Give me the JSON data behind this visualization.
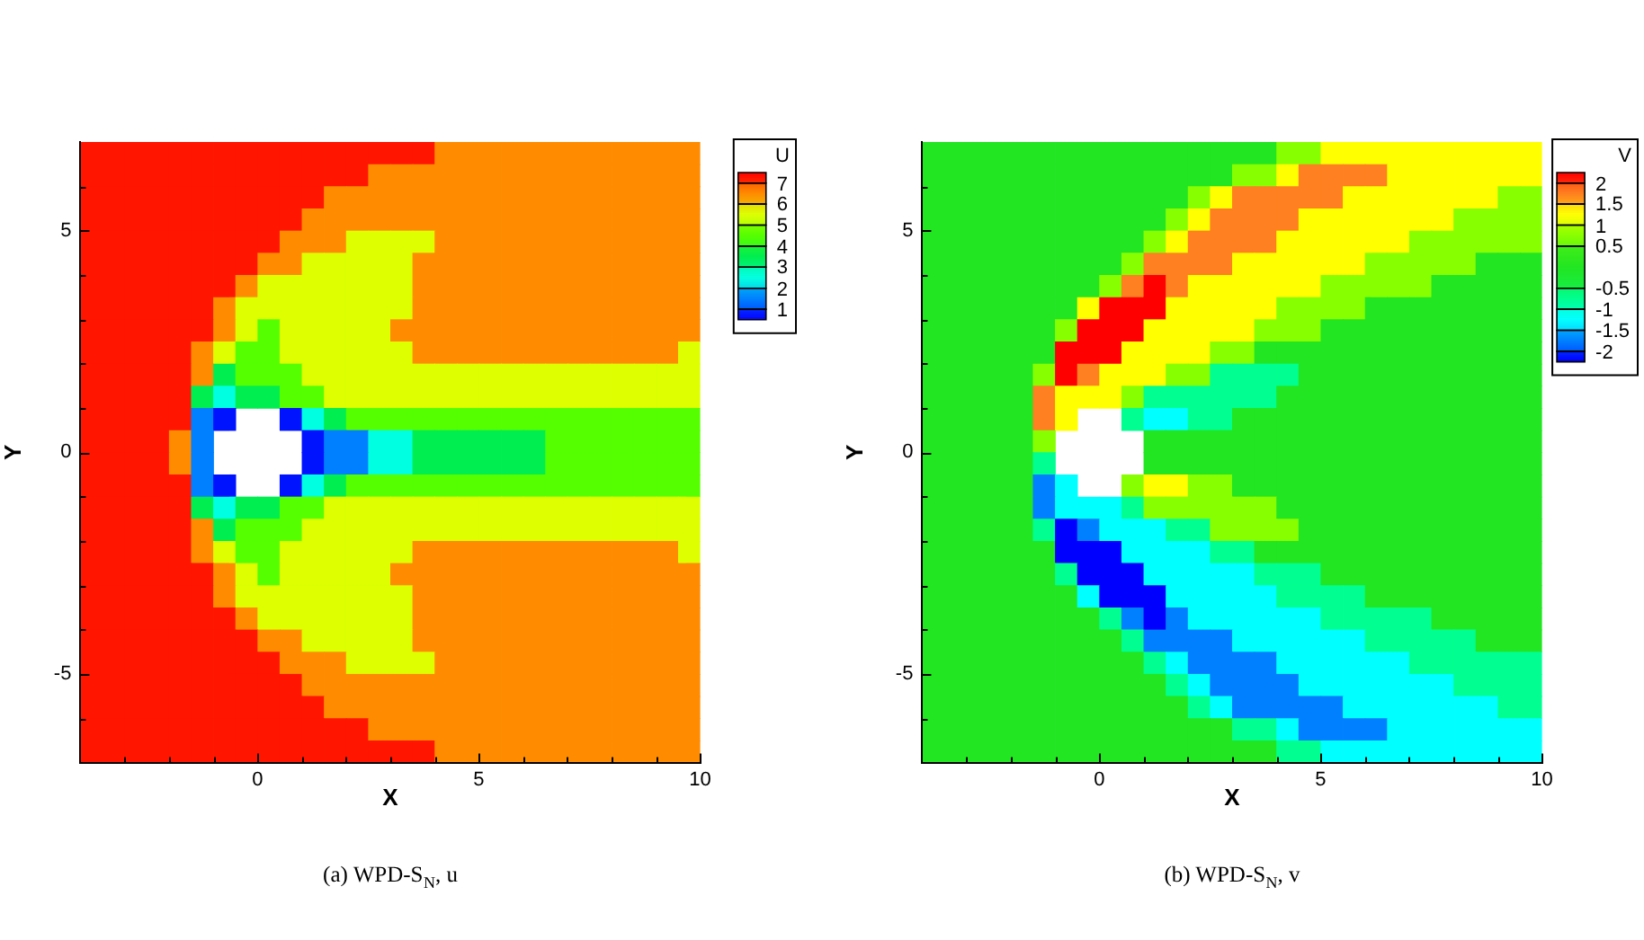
{
  "chart_data": [
    {
      "type": "heatmap",
      "title": "(a) WPD-S$_{N}$, u",
      "xlabel": "X",
      "ylabel": "Y",
      "clabel": "U",
      "xlim": [
        -4,
        10
      ],
      "ylim": [
        -7,
        7
      ],
      "xticks": [
        {
          "value": -3,
          "label": null
        },
        {
          "value": -2,
          "label": null
        },
        {
          "value": -1,
          "label": null
        },
        0,
        {
          "value": 1,
          "label": null
        },
        {
          "value": 2,
          "label": null
        },
        {
          "value": 3,
          "label": null
        },
        {
          "value": 4,
          "label": null
        },
        5,
        {
          "value": 6,
          "label": null
        },
        {
          "value": 7,
          "label": null
        },
        {
          "value": 8,
          "label": null
        },
        {
          "value": 9,
          "label": null
        },
        10
      ],
      "yticks": [
        {
          "value": -6,
          "label": null
        },
        -5,
        {
          "value": -4,
          "label": null
        },
        {
          "value": -3,
          "label": null
        },
        {
          "value": -2,
          "label": null
        },
        {
          "value": -1,
          "label": null
        },
        0,
        {
          "value": 1,
          "label": null
        },
        {
          "value": 2,
          "label": null
        },
        {
          "value": 3,
          "label": null
        },
        {
          "value": 4,
          "label": null
        },
        5,
        {
          "value": 6,
          "label": null
        }
      ],
      "clim": [
        0.5,
        7.5
      ],
      "cticks": [
        1,
        2,
        3,
        4,
        5,
        6,
        7
      ],
      "colors": [
        "#0000ff",
        "#0080ff",
        "#00ffe0",
        "#00ee50",
        "#55ff00",
        "#ddff00",
        "#ff8c00",
        "#ff0000"
      ],
      "cells": [
        [
          7.25,
          7.25,
          7.25,
          7.25,
          7.25,
          7.25,
          7.25,
          7.25,
          7.25,
          7.25,
          7.25,
          7.25,
          7.25,
          7.25,
          7.25,
          7.25,
          6.5,
          6.5,
          6.5,
          6.5,
          6.5,
          6.5,
          6.5,
          6.5,
          6.5,
          6.5,
          6.5,
          6.5
        ],
        [
          7.25,
          7.25,
          7.25,
          7.25,
          7.25,
          7.25,
          7.25,
          7.25,
          7.25,
          7.25,
          7.25,
          7.25,
          7.25,
          6.5,
          6.5,
          6.5,
          6.5,
          6.5,
          6.5,
          6.5,
          6.5,
          6.5,
          6.5,
          6.5,
          6.5,
          6.5,
          6.5,
          6.5
        ],
        [
          7.25,
          7.25,
          7.25,
          7.25,
          7.25,
          7.25,
          7.25,
          7.25,
          7.25,
          7.25,
          7.25,
          6.5,
          6.5,
          6.5,
          6.5,
          6.5,
          6.5,
          6.5,
          6.5,
          6.5,
          6.5,
          6.5,
          6.5,
          6.5,
          6.5,
          6.5,
          6.5,
          6.5
        ],
        [
          7.25,
          7.25,
          7.25,
          7.25,
          7.25,
          7.25,
          7.25,
          7.25,
          7.25,
          7.25,
          6.5,
          6.5,
          6.5,
          6.5,
          6.5,
          6.5,
          6.5,
          6.5,
          6.5,
          6.5,
          6.5,
          6.5,
          6.5,
          6.5,
          6.5,
          6.5,
          6.5,
          6.5
        ],
        [
          7.25,
          7.25,
          7.25,
          7.25,
          7.25,
          7.25,
          7.25,
          7.25,
          7.25,
          6.5,
          6.5,
          6.5,
          5.5,
          5.5,
          5.5,
          5.5,
          6.5,
          6.5,
          6.5,
          6.5,
          6.5,
          6.5,
          6.5,
          6.5,
          6.5,
          6.5,
          6.5,
          6.5
        ],
        [
          7.25,
          7.25,
          7.25,
          7.25,
          7.25,
          7.25,
          7.25,
          7.25,
          6.5,
          6.5,
          5.5,
          5.5,
          5.5,
          5.5,
          5.5,
          6.5,
          6.5,
          6.5,
          6.5,
          6.5,
          6.5,
          6.5,
          6.5,
          6.5,
          6.5,
          6.5,
          6.5,
          6.5
        ],
        [
          7.25,
          7.25,
          7.25,
          7.25,
          7.25,
          7.25,
          7.25,
          6.5,
          5.5,
          5.5,
          5.5,
          5.5,
          5.5,
          5.5,
          5.5,
          6.5,
          6.5,
          6.5,
          6.5,
          6.5,
          6.5,
          6.5,
          6.5,
          6.5,
          6.5,
          6.5,
          6.5,
          6.5
        ],
        [
          7.25,
          7.25,
          7.25,
          7.25,
          7.25,
          7.25,
          6.5,
          5.5,
          5.5,
          5.5,
          5.5,
          5.5,
          5.5,
          5.5,
          5.5,
          6.5,
          6.5,
          6.5,
          6.5,
          6.5,
          6.5,
          6.5,
          6.5,
          6.5,
          6.5,
          6.5,
          6.5,
          6.5
        ],
        [
          7.25,
          7.25,
          7.25,
          7.25,
          7.25,
          7.25,
          6.5,
          5.5,
          4.5,
          5.5,
          5.5,
          5.5,
          5.5,
          5.5,
          6.5,
          6.5,
          6.5,
          6.5,
          6.5,
          6.5,
          6.5,
          6.5,
          6.5,
          6.5,
          6.5,
          6.5,
          6.5,
          6.5
        ],
        [
          7.25,
          7.25,
          7.25,
          7.25,
          7.25,
          6.5,
          5.5,
          4.5,
          4.5,
          5.5,
          5.5,
          5.5,
          5.5,
          5.5,
          5.5,
          6.5,
          6.5,
          6.5,
          6.5,
          6.5,
          6.5,
          6.5,
          6.5,
          6.5,
          6.5,
          6.5,
          6.5,
          5.5
        ],
        [
          7.25,
          7.25,
          7.25,
          7.25,
          7.25,
          6.5,
          3.5,
          4.5,
          4.5,
          4.5,
          5.5,
          5.5,
          5.5,
          5.5,
          5.5,
          5.5,
          5.5,
          5.5,
          5.5,
          5.5,
          5.5,
          5.5,
          5.5,
          5.5,
          5.5,
          5.5,
          5.5,
          5.5
        ],
        [
          7.25,
          7.25,
          7.25,
          7.25,
          7.25,
          3.5,
          2.5,
          3.5,
          3.5,
          4.5,
          4.5,
          5.5,
          5.5,
          5.5,
          5.5,
          5.5,
          5.5,
          5.5,
          5.5,
          5.5,
          5.5,
          5.5,
          5.5,
          5.5,
          5.5,
          5.5,
          5.5,
          5.5
        ],
        [
          7.25,
          7.25,
          7.25,
          7.25,
          7.25,
          1.5,
          0.75,
          null,
          null,
          0.75,
          2.5,
          3.5,
          4.5,
          4.5,
          4.5,
          4.5,
          4.5,
          4.5,
          4.5,
          4.5,
          4.5,
          4.5,
          4.5,
          4.5,
          4.5,
          4.5,
          4.5,
          4.5
        ],
        [
          7.25,
          7.25,
          7.25,
          7.25,
          6.5,
          1.5,
          null,
          null,
          null,
          null,
          0.75,
          1.5,
          1.5,
          2.5,
          2.5,
          3.5,
          3.5,
          3.5,
          3.5,
          3.5,
          3.5,
          4.5,
          4.5,
          4.5,
          4.5,
          4.5,
          4.5,
          4.5
        ],
        [
          7.25,
          7.25,
          7.25,
          7.25,
          6.5,
          1.5,
          null,
          null,
          null,
          null,
          0.75,
          1.5,
          1.5,
          2.5,
          2.5,
          3.5,
          3.5,
          3.5,
          3.5,
          3.5,
          3.5,
          4.5,
          4.5,
          4.5,
          4.5,
          4.5,
          4.5,
          4.5
        ],
        [
          7.25,
          7.25,
          7.25,
          7.25,
          7.25,
          1.5,
          0.75,
          null,
          null,
          0.75,
          2.5,
          3.5,
          4.5,
          4.5,
          4.5,
          4.5,
          4.5,
          4.5,
          4.5,
          4.5,
          4.5,
          4.5,
          4.5,
          4.5,
          4.5,
          4.5,
          4.5,
          4.5
        ],
        [
          7.25,
          7.25,
          7.25,
          7.25,
          7.25,
          3.5,
          2.5,
          3.5,
          3.5,
          4.5,
          4.5,
          5.5,
          5.5,
          5.5,
          5.5,
          5.5,
          5.5,
          5.5,
          5.5,
          5.5,
          5.5,
          5.5,
          5.5,
          5.5,
          5.5,
          5.5,
          5.5,
          5.5
        ],
        [
          7.25,
          7.25,
          7.25,
          7.25,
          7.25,
          6.5,
          3.5,
          4.5,
          4.5,
          4.5,
          5.5,
          5.5,
          5.5,
          5.5,
          5.5,
          5.5,
          5.5,
          5.5,
          5.5,
          5.5,
          5.5,
          5.5,
          5.5,
          5.5,
          5.5,
          5.5,
          5.5,
          5.5
        ],
        [
          7.25,
          7.25,
          7.25,
          7.25,
          7.25,
          6.5,
          5.5,
          4.5,
          4.5,
          5.5,
          5.5,
          5.5,
          5.5,
          5.5,
          5.5,
          6.5,
          6.5,
          6.5,
          6.5,
          6.5,
          6.5,
          6.5,
          6.5,
          6.5,
          6.5,
          6.5,
          6.5,
          5.5
        ],
        [
          7.25,
          7.25,
          7.25,
          7.25,
          7.25,
          7.25,
          6.5,
          5.5,
          4.5,
          5.5,
          5.5,
          5.5,
          5.5,
          5.5,
          6.5,
          6.5,
          6.5,
          6.5,
          6.5,
          6.5,
          6.5,
          6.5,
          6.5,
          6.5,
          6.5,
          6.5,
          6.5,
          6.5
        ],
        [
          7.25,
          7.25,
          7.25,
          7.25,
          7.25,
          7.25,
          6.5,
          5.5,
          5.5,
          5.5,
          5.5,
          5.5,
          5.5,
          5.5,
          5.5,
          6.5,
          6.5,
          6.5,
          6.5,
          6.5,
          6.5,
          6.5,
          6.5,
          6.5,
          6.5,
          6.5,
          6.5,
          6.5
        ],
        [
          7.25,
          7.25,
          7.25,
          7.25,
          7.25,
          7.25,
          7.25,
          6.5,
          5.5,
          5.5,
          5.5,
          5.5,
          5.5,
          5.5,
          5.5,
          6.5,
          6.5,
          6.5,
          6.5,
          6.5,
          6.5,
          6.5,
          6.5,
          6.5,
          6.5,
          6.5,
          6.5,
          6.5
        ],
        [
          7.25,
          7.25,
          7.25,
          7.25,
          7.25,
          7.25,
          7.25,
          7.25,
          6.5,
          6.5,
          5.5,
          5.5,
          5.5,
          5.5,
          5.5,
          6.5,
          6.5,
          6.5,
          6.5,
          6.5,
          6.5,
          6.5,
          6.5,
          6.5,
          6.5,
          6.5,
          6.5,
          6.5
        ],
        [
          7.25,
          7.25,
          7.25,
          7.25,
          7.25,
          7.25,
          7.25,
          7.25,
          7.25,
          6.5,
          6.5,
          6.5,
          5.5,
          5.5,
          5.5,
          5.5,
          6.5,
          6.5,
          6.5,
          6.5,
          6.5,
          6.5,
          6.5,
          6.5,
          6.5,
          6.5,
          6.5,
          6.5
        ],
        [
          7.25,
          7.25,
          7.25,
          7.25,
          7.25,
          7.25,
          7.25,
          7.25,
          7.25,
          7.25,
          6.5,
          6.5,
          6.5,
          6.5,
          6.5,
          6.5,
          6.5,
          6.5,
          6.5,
          6.5,
          6.5,
          6.5,
          6.5,
          6.5,
          6.5,
          6.5,
          6.5,
          6.5
        ],
        [
          7.25,
          7.25,
          7.25,
          7.25,
          7.25,
          7.25,
          7.25,
          7.25,
          7.25,
          7.25,
          7.25,
          6.5,
          6.5,
          6.5,
          6.5,
          6.5,
          6.5,
          6.5,
          6.5,
          6.5,
          6.5,
          6.5,
          6.5,
          6.5,
          6.5,
          6.5,
          6.5,
          6.5
        ],
        [
          7.25,
          7.25,
          7.25,
          7.25,
          7.25,
          7.25,
          7.25,
          7.25,
          7.25,
          7.25,
          7.25,
          7.25,
          7.25,
          6.5,
          6.5,
          6.5,
          6.5,
          6.5,
          6.5,
          6.5,
          6.5,
          6.5,
          6.5,
          6.5,
          6.5,
          6.5,
          6.5,
          6.5
        ],
        [
          7.25,
          7.25,
          7.25,
          7.25,
          7.25,
          7.25,
          7.25,
          7.25,
          7.25,
          7.25,
          7.25,
          7.25,
          7.25,
          7.25,
          7.25,
          7.25,
          6.5,
          6.5,
          6.5,
          6.5,
          6.5,
          6.5,
          6.5,
          6.5,
          6.5,
          6.5,
          6.5,
          6.5
        ]
      ]
    },
    {
      "type": "heatmap",
      "title": "(b) WPD-S$_{N}$, v",
      "xlabel": "X",
      "ylabel": "Y",
      "clabel": "V",
      "xlim": [
        -4,
        10
      ],
      "ylim": [
        -7,
        7
      ],
      "xticks": [
        {
          "value": -3,
          "label": null
        },
        {
          "value": -2,
          "label": null
        },
        {
          "value": -1,
          "label": null
        },
        0,
        {
          "value": 1,
          "label": null
        },
        {
          "value": 2,
          "label": null
        },
        {
          "value": 3,
          "label": null
        },
        {
          "value": 4,
          "label": null
        },
        5,
        {
          "value": 6,
          "label": null
        },
        {
          "value": 7,
          "label": null
        },
        {
          "value": 8,
          "label": null
        },
        {
          "value": 9,
          "label": null
        },
        10
      ],
      "yticks": [
        {
          "value": -6,
          "label": null
        },
        -5,
        {
          "value": -4,
          "label": null
        },
        {
          "value": -3,
          "label": null
        },
        {
          "value": -2,
          "label": null
        },
        {
          "value": -1,
          "label": null
        },
        0,
        {
          "value": 1,
          "label": null
        },
        {
          "value": 2,
          "label": null
        },
        {
          "value": 3,
          "label": null
        },
        {
          "value": 4,
          "label": null
        },
        5,
        {
          "value": 6,
          "label": null
        }
      ],
      "clim": [
        -2.25,
        2.25
      ],
      "cticks": [
        -2,
        -1.5,
        -1,
        -0.5,
        0.5,
        1,
        1.5,
        2
      ],
      "colors": [
        "#0000ff",
        "#0080ff",
        "#00ffff",
        "#00ff90",
        "#22e622",
        "#88ff00",
        "#ffff00",
        "#ff8020",
        "#ff0000"
      ],
      "cells": [
        [
          0,
          0,
          0,
          0,
          0,
          0,
          0,
          0,
          0,
          0,
          0,
          0,
          0,
          0,
          0,
          0,
          0.75,
          0.75,
          1.25,
          1.25,
          1.25,
          1.25,
          1.25,
          1.25,
          1.25,
          1.25,
          1.25,
          1.25
        ],
        [
          0,
          0,
          0,
          0,
          0,
          0,
          0,
          0,
          0,
          0,
          0,
          0,
          0,
          0,
          0.75,
          0.75,
          1.25,
          1.75,
          1.75,
          1.75,
          1.75,
          1.25,
          1.25,
          1.25,
          1.25,
          1.25,
          1.25,
          1.25
        ],
        [
          0,
          0,
          0,
          0,
          0,
          0,
          0,
          0,
          0,
          0,
          0,
          0,
          0.75,
          1.25,
          1.75,
          1.75,
          1.75,
          1.75,
          1.75,
          1.25,
          1.25,
          1.25,
          1.25,
          1.25,
          1.25,
          1.25,
          0.75,
          0.75
        ],
        [
          0,
          0,
          0,
          0,
          0,
          0,
          0,
          0,
          0,
          0,
          0,
          0.75,
          1.25,
          1.75,
          1.75,
          1.75,
          1.75,
          1.25,
          1.25,
          1.25,
          1.25,
          1.25,
          1.25,
          1.25,
          0.75,
          0.75,
          0.75,
          0.75
        ],
        [
          0,
          0,
          0,
          0,
          0,
          0,
          0,
          0,
          0,
          0,
          0.75,
          1.25,
          1.75,
          1.75,
          1.75,
          1.75,
          1.25,
          1.25,
          1.25,
          1.25,
          1.25,
          1.25,
          0.75,
          0.75,
          0.75,
          0.75,
          0.75,
          0.75
        ],
        [
          0,
          0,
          0,
          0,
          0,
          0,
          0,
          0,
          0,
          0.75,
          1.75,
          1.75,
          1.75,
          1.75,
          1.25,
          1.25,
          1.25,
          1.25,
          1.25,
          1.25,
          0.75,
          0.75,
          0.75,
          0.75,
          0.75,
          0,
          0,
          0
        ],
        [
          0,
          0,
          0,
          0,
          0,
          0,
          0,
          0,
          0.75,
          1.75,
          2.25,
          1.75,
          1.25,
          1.25,
          1.25,
          1.25,
          1.25,
          1.25,
          0.75,
          0.75,
          0.75,
          0.75,
          0.75,
          0,
          0,
          0,
          0,
          0
        ],
        [
          0,
          0,
          0,
          0,
          0,
          0,
          0,
          1.25,
          2.25,
          2.25,
          2.25,
          1.25,
          1.25,
          1.25,
          1.25,
          1.25,
          0.75,
          0.75,
          0.75,
          0.75,
          0,
          0,
          0,
          0,
          0,
          0,
          0,
          0
        ],
        [
          0,
          0,
          0,
          0,
          0,
          0,
          0.75,
          2.25,
          2.25,
          2.25,
          1.25,
          1.25,
          1.25,
          1.25,
          1.25,
          0.75,
          0.75,
          0.75,
          0,
          0,
          0,
          0,
          0,
          0,
          0,
          0,
          0,
          0
        ],
        [
          0,
          0,
          0,
          0,
          0,
          0,
          2.25,
          2.25,
          2.25,
          1.25,
          1.25,
          1.25,
          1.25,
          0.75,
          0.75,
          0,
          0,
          0,
          0,
          0,
          0,
          0,
          0,
          0,
          0,
          0,
          0,
          0
        ],
        [
          0,
          0,
          0,
          0,
          0,
          0.75,
          2.25,
          1.75,
          1.25,
          1.25,
          1.25,
          0.75,
          0.75,
          -0.75,
          -0.75,
          -0.75,
          -0.75,
          0,
          0,
          0,
          0,
          0,
          0,
          0,
          0,
          0,
          0,
          0
        ],
        [
          0,
          0,
          0,
          0,
          0,
          1.75,
          1.25,
          1.25,
          1.25,
          0.75,
          -0.75,
          -0.75,
          -0.75,
          -0.75,
          -0.75,
          -0.75,
          0,
          0,
          0,
          0,
          0,
          0,
          0,
          0,
          0,
          0,
          0,
          0
        ],
        [
          0,
          0,
          0,
          0,
          0,
          1.75,
          1.25,
          null,
          null,
          -0.75,
          -1.25,
          -1.25,
          -0.75,
          -0.75,
          0,
          0,
          0,
          0,
          0,
          0,
          0,
          0,
          0,
          0,
          0,
          0,
          0,
          0
        ],
        [
          0,
          0,
          0,
          0,
          0,
          0.75,
          null,
          null,
          null,
          null,
          0,
          0,
          0,
          0,
          0,
          0,
          0,
          0,
          0,
          0,
          0,
          0,
          0,
          0,
          0,
          0,
          0,
          0
        ],
        [
          0,
          0,
          0,
          0,
          0,
          -0.75,
          null,
          null,
          null,
          null,
          0,
          0,
          0,
          0,
          0,
          0,
          0,
          0,
          0,
          0,
          0,
          0,
          0,
          0,
          0,
          0,
          0,
          0
        ],
        [
          0,
          0,
          0,
          0,
          0,
          -1.75,
          -1.25,
          null,
          null,
          0.75,
          1.25,
          1.25,
          0.75,
          0.75,
          0,
          0,
          0,
          0,
          0,
          0,
          0,
          0,
          0,
          0,
          0,
          0,
          0,
          0
        ],
        [
          0,
          0,
          0,
          0,
          0,
          -1.75,
          -1.25,
          -1.25,
          -1.25,
          -0.75,
          0.75,
          0.75,
          0.75,
          0.75,
          0.75,
          0.75,
          0,
          0,
          0,
          0,
          0,
          0,
          0,
          0,
          0,
          0,
          0,
          0
        ],
        [
          0,
          0,
          0,
          0,
          0,
          -0.75,
          -2.25,
          -1.75,
          -1.25,
          -1.25,
          -1.25,
          -0.75,
          -0.75,
          0.75,
          0.75,
          0.75,
          0.75,
          0,
          0,
          0,
          0,
          0,
          0,
          0,
          0,
          0,
          0,
          0
        ],
        [
          0,
          0,
          0,
          0,
          0,
          0,
          -2.25,
          -2.25,
          -2.25,
          -1.25,
          -1.25,
          -1.25,
          -1.25,
          -0.75,
          -0.75,
          0,
          0,
          0,
          0,
          0,
          0,
          0,
          0,
          0,
          0,
          0,
          0,
          0
        ],
        [
          0,
          0,
          0,
          0,
          0,
          0,
          -0.75,
          -2.25,
          -2.25,
          -2.25,
          -1.25,
          -1.25,
          -1.25,
          -1.25,
          -1.25,
          -0.75,
          -0.75,
          -0.75,
          0,
          0,
          0,
          0,
          0,
          0,
          0,
          0,
          0,
          0
        ],
        [
          0,
          0,
          0,
          0,
          0,
          0,
          0,
          -1.25,
          -2.25,
          -2.25,
          -2.25,
          -1.25,
          -1.25,
          -1.25,
          -1.25,
          -1.25,
          -0.75,
          -0.75,
          -0.75,
          -0.75,
          0,
          0,
          0,
          0,
          0,
          0,
          0,
          0
        ],
        [
          0,
          0,
          0,
          0,
          0,
          0,
          0,
          0,
          -0.75,
          -1.75,
          -2.25,
          -1.75,
          -1.25,
          -1.25,
          -1.25,
          -1.25,
          -1.25,
          -1.25,
          -0.75,
          -0.75,
          -0.75,
          -0.75,
          -0.75,
          0,
          0,
          0,
          0,
          0
        ],
        [
          0,
          0,
          0,
          0,
          0,
          0,
          0,
          0,
          0,
          -0.75,
          -1.75,
          -1.75,
          -1.75,
          -1.75,
          -1.25,
          -1.25,
          -1.25,
          -1.25,
          -1.25,
          -1.25,
          -0.75,
          -0.75,
          -0.75,
          -0.75,
          -0.75,
          0,
          0,
          0
        ],
        [
          0,
          0,
          0,
          0,
          0,
          0,
          0,
          0,
          0,
          0,
          -0.75,
          -1.25,
          -1.75,
          -1.75,
          -1.75,
          -1.75,
          -1.25,
          -1.25,
          -1.25,
          -1.25,
          -1.25,
          -1.25,
          -0.75,
          -0.75,
          -0.75,
          -0.75,
          -0.75,
          -0.75
        ],
        [
          0,
          0,
          0,
          0,
          0,
          0,
          0,
          0,
          0,
          0,
          0,
          -0.75,
          -1.25,
          -1.75,
          -1.75,
          -1.75,
          -1.75,
          -1.25,
          -1.25,
          -1.25,
          -1.25,
          -1.25,
          -1.25,
          -1.25,
          -0.75,
          -0.75,
          -0.75,
          -0.75
        ],
        [
          0,
          0,
          0,
          0,
          0,
          0,
          0,
          0,
          0,
          0,
          0,
          0,
          -0.75,
          -1.25,
          -1.75,
          -1.75,
          -1.75,
          -1.75,
          -1.75,
          -1.25,
          -1.25,
          -1.25,
          -1.25,
          -1.25,
          -1.25,
          -1.25,
          -0.75,
          -0.75
        ],
        [
          0,
          0,
          0,
          0,
          0,
          0,
          0,
          0,
          0,
          0,
          0,
          0,
          0,
          0,
          -0.75,
          -0.75,
          -1.25,
          -1.75,
          -1.75,
          -1.75,
          -1.75,
          -1.25,
          -1.25,
          -1.25,
          -1.25,
          -1.25,
          -1.25,
          -1.25
        ],
        [
          0,
          0,
          0,
          0,
          0,
          0,
          0,
          0,
          0,
          0,
          0,
          0,
          0,
          0,
          0,
          0,
          -0.75,
          -0.75,
          -1.25,
          -1.25,
          -1.25,
          -1.25,
          -1.25,
          -1.25,
          -1.25,
          -1.25,
          -1.25,
          -1.25
        ]
      ]
    }
  ]
}
